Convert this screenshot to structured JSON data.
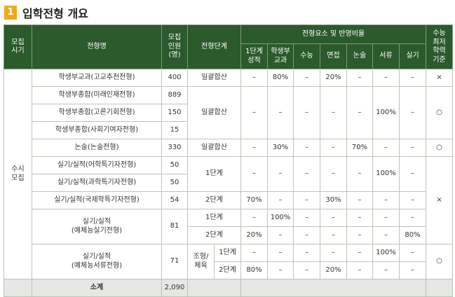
{
  "title": {
    "number": "1",
    "text": "입학전형 개요"
  },
  "table": {
    "headers": {
      "period": "모집\n시기",
      "name": "전형명",
      "quota": "모집\n인원\n(명)",
      "stage": "전형단계",
      "elements": "전형요소 및 반영비율",
      "sub": [
        "1단계\n성적",
        "학생부\n교과",
        "수능",
        "면접",
        "논술",
        "서류",
        "실기"
      ],
      "min": "수능\n최저\n학력\n기준"
    },
    "period": "수시\n모집",
    "rows": [
      {
        "name": "학생부교과(고교추천전형)",
        "quota": 400,
        "stage": "일괄합산",
        "ratios": [
          "–",
          "80%",
          "–",
          "20%",
          "–",
          "–",
          "–"
        ],
        "min": "×"
      },
      {
        "name": "학생부종합(미래인재전형)",
        "quota": 889,
        "stage": "일괄합산",
        "ratios": [
          "–",
          "–",
          "–",
          "–",
          "–",
          "100%",
          "–"
        ],
        "min": "○"
      },
      {
        "name": "학생부종합(고른기회전형)",
        "quota": 150
      },
      {
        "name": "학생부종합(사회기여자전형)",
        "quota": 15
      },
      {
        "name": "논술(논술전형)",
        "quota": 330,
        "stage": "일괄합산",
        "ratios": [
          "–",
          "30%",
          "–",
          "–",
          "70%",
          "–",
          "–"
        ],
        "min": "○"
      },
      {
        "name": "실기/실적(어학특기자전형)",
        "quota": 50,
        "stage": "1단계",
        "ratios": [
          "–",
          "–",
          "–",
          "–",
          "–",
          "100%",
          "–"
        ],
        "min": "×"
      },
      {
        "name": "실기/실적(과학특기자전형)",
        "quota": 50
      },
      {
        "name": "실기/실적(국제학특기자전형)",
        "quota": 54,
        "stage": "2단계",
        "ratios": [
          "70%",
          "–",
          "–",
          "30%",
          "–",
          "–",
          "–"
        ]
      },
      {
        "name": "실기/실적\n(예체능실기전형)",
        "quota": 81,
        "stages": [
          {
            "stage": "1단계",
            "ratios": [
              "–",
              "100%",
              "–",
              "–",
              "–",
              "–",
              "–"
            ]
          },
          {
            "stage": "2단계",
            "ratios": [
              "20%",
              "–",
              "–",
              "–",
              "–",
              "–",
              "80%"
            ]
          }
        ]
      },
      {
        "name": "실기/실적\n(예체능서류전형)",
        "quota": 71,
        "group": "조형/\n체육",
        "stages": [
          {
            "stage": "1단계",
            "ratios": [
              "–",
              "–",
              "–",
              "–",
              "–",
              "100%",
              "–"
            ]
          },
          {
            "stage": "2단계",
            "ratios": [
              "80%",
              "–",
              "–",
              "20%",
              "–",
              "–",
              "–"
            ]
          }
        ],
        "min": "○"
      }
    ],
    "total": {
      "label": "소계",
      "quota": "2,090"
    }
  }
}
